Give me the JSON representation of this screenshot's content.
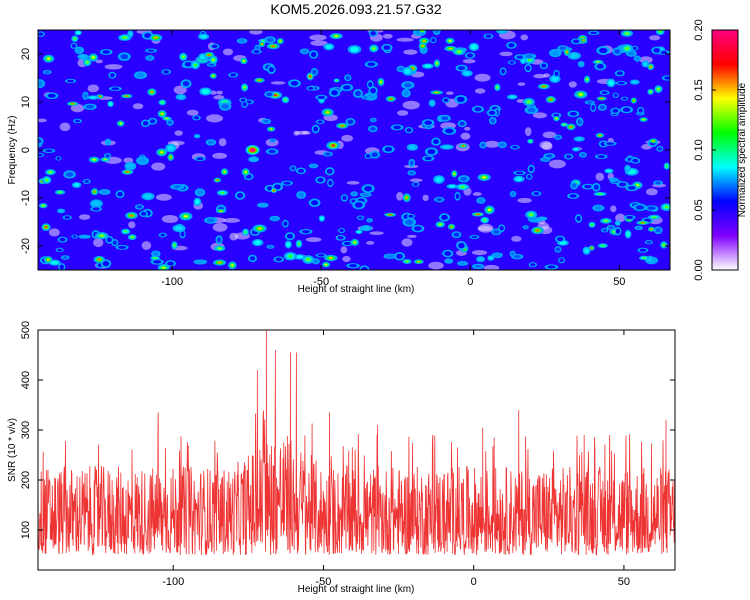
{
  "title": "KOM5.2026.093.21.57.G32",
  "chart_data": [
    {
      "type": "heatmap",
      "xlabel": "Height of straight line (km)",
      "ylabel": "Frequency (Hz)",
      "xlim": [
        -145,
        67
      ],
      "ylim": [
        -25,
        25
      ],
      "xticks": [
        -100,
        -50,
        0,
        50
      ],
      "yticks": [
        -20,
        -10,
        0,
        10,
        20
      ],
      "colorbar": {
        "label": "Normalized spectral amplitude",
        "range": [
          0,
          0.2
        ],
        "ticks": [
          "0.00",
          "0.05",
          "0.10",
          "0.15",
          "0.20"
        ],
        "colors": [
          "#ffffff",
          "#8000ff",
          "#0000ff",
          "#00ffff",
          "#00ff00",
          "#ffff00",
          "#ff0000",
          "#ff0080"
        ]
      },
      "peak": {
        "x": -73,
        "y": 0,
        "value": 0.2
      },
      "background_level": 0.03,
      "scattered_spots_level_range": [
        0.05,
        0.12
      ]
    },
    {
      "type": "line",
      "xlabel": "Height of straight line (km)",
      "ylabel": "SNR (10 * v/v)",
      "xlim": [
        -145,
        67
      ],
      "ylim": [
        20,
        500
      ],
      "xticks": [
        -100,
        -50,
        0,
        50
      ],
      "yticks": [
        100,
        200,
        300,
        400,
        500
      ],
      "series_color": "#ee3333",
      "baseline_range": [
        40,
        270
      ],
      "peaks": [
        {
          "x": -69,
          "y": 500
        },
        {
          "x": -66,
          "y": 460
        },
        {
          "x": -61,
          "y": 455
        },
        {
          "x": -59,
          "y": 455
        },
        {
          "x": -72,
          "y": 420
        },
        {
          "x": -105,
          "y": 335
        },
        {
          "x": -48,
          "y": 335
        },
        {
          "x": 15,
          "y": 340
        },
        {
          "x": 64,
          "y": 320
        },
        {
          "x": 3,
          "y": 305
        },
        {
          "x": -32,
          "y": 310
        }
      ]
    }
  ]
}
